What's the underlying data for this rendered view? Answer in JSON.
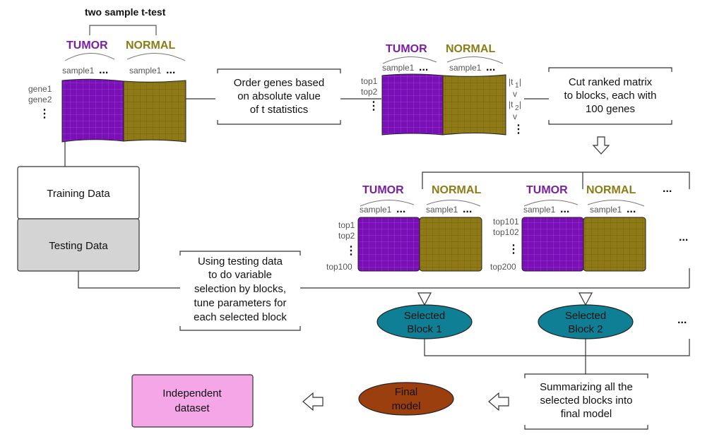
{
  "labels": {
    "title": "two sample t-test",
    "tumor": "TUMOR",
    "normal": "NORMAL",
    "sample1": "sample1",
    "gene1": "gene1",
    "gene2": "gene2",
    "top1": "top1",
    "top2": "top2",
    "top100": "top100",
    "top101": "top101",
    "top102": "top102",
    "top200": "top200",
    "t1": "|t",
    "t1_sub": "1",
    "t2": "|t",
    "t2_sub": "2",
    "t_bar": "|",
    "ge": "v",
    "dots": "...",
    "vdots": "⋮"
  },
  "boxes": {
    "order": [
      "Order genes based",
      "on absolute value",
      "of t statistics"
    ],
    "cut": [
      "Cut ranked matrix",
      "to blocks, each with",
      "100 genes"
    ],
    "training": "Training Data",
    "testing": "Testing Data",
    "using": [
      "Using testing data",
      "to do variable",
      "selection by blocks,",
      "tune parameters for",
      "each selected block"
    ],
    "summarize": [
      "Summarizing all the",
      "selected blocks into",
      "final model"
    ],
    "independent": [
      "Independent",
      "dataset"
    ]
  },
  "ellipses": {
    "block1": [
      "Selected",
      "Block 1"
    ],
    "block2": [
      "Selected",
      "Block 2"
    ],
    "final": [
      "Final",
      "model"
    ]
  },
  "colors": {
    "tumor": "#7a0fb8",
    "normal": "#8f7a17",
    "ellipse_teal": "#0e7f95",
    "ellipse_brown": "#9c3f0e",
    "testing_fill": "#d4d4d4",
    "independent_fill": "#f4a6e6"
  }
}
